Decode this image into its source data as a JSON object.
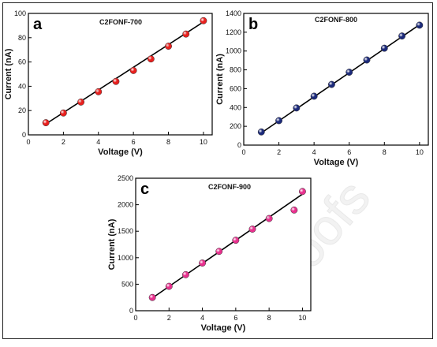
{
  "figure": {
    "watermark": "proofs"
  },
  "chart_data": [
    {
      "type": "scatter",
      "panel_letter": "a",
      "title": "C2FONF-700",
      "xlabel": "Voltage (V)",
      "ylabel": "Current (nA)",
      "xlim": [
        0,
        10.5
      ],
      "ylim": [
        0,
        100
      ],
      "xticks": [
        0,
        2,
        4,
        6,
        8,
        10
      ],
      "yticks": [
        0,
        20,
        40,
        60,
        80,
        100
      ],
      "marker_color": "#e8201e",
      "fit_color": "#000000",
      "x": [
        1,
        2,
        3,
        4,
        5,
        6,
        7,
        8,
        9,
        10
      ],
      "y": [
        10,
        18,
        27,
        35.5,
        44,
        53,
        62.5,
        73,
        83,
        94
      ],
      "fit": {
        "x": [
          1,
          10
        ],
        "y": [
          9,
          93
        ]
      }
    },
    {
      "type": "scatter",
      "panel_letter": "b",
      "title": "C2FONF-800",
      "xlabel": "Voltage (V)",
      "ylabel": "Current (nA)",
      "xlim": [
        0,
        10.5
      ],
      "ylim": [
        0,
        1400
      ],
      "xticks": [
        0,
        2,
        4,
        6,
        8,
        10
      ],
      "yticks": [
        0,
        200,
        400,
        600,
        800,
        1000,
        1200,
        1400
      ],
      "marker_color": "#1c2a7a",
      "fit_color": "#000000",
      "x": [
        1,
        2,
        3,
        4,
        5,
        6,
        7,
        8,
        9,
        10
      ],
      "y": [
        140,
        260,
        395,
        520,
        645,
        775,
        905,
        1030,
        1160,
        1275
      ],
      "fit": {
        "x": [
          1,
          10
        ],
        "y": [
          130,
          1280
        ]
      }
    },
    {
      "type": "scatter",
      "panel_letter": "c",
      "title": "C2FONF-900",
      "xlabel": "Voltage (V)",
      "ylabel": "Current (nA)",
      "xlim": [
        0,
        10.5
      ],
      "ylim": [
        0,
        2500
      ],
      "xticks": [
        0,
        2,
        4,
        6,
        8,
        10
      ],
      "yticks": [
        0,
        500,
        1000,
        1500,
        2000,
        2500
      ],
      "marker_color": "#e8308e",
      "fit_color": "#000000",
      "x": [
        1,
        2,
        3,
        4,
        5,
        6,
        7,
        8,
        9.5,
        10
      ],
      "y": [
        250,
        460,
        680,
        900,
        1120,
        1330,
        1540,
        1740,
        1900,
        2250
      ],
      "fit": {
        "x": [
          1,
          10
        ],
        "y": [
          240,
          2200
        ]
      }
    }
  ]
}
